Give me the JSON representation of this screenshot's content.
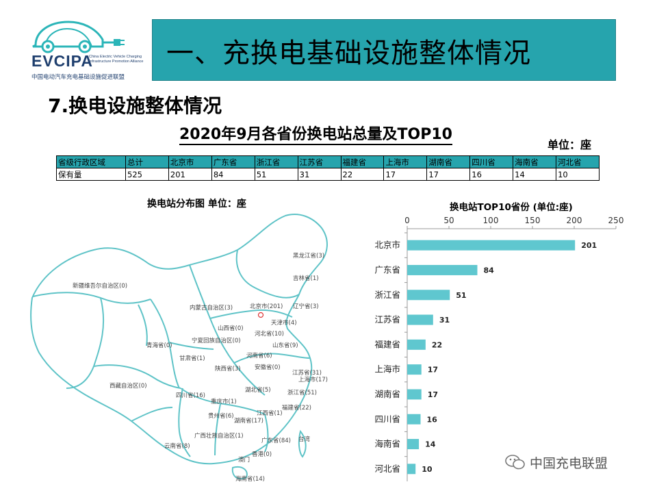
{
  "logo": {
    "name": "EVCIPA",
    "english": "China Electric Vehicle Charging Infrastructure Promotion Alliance",
    "chinese": "中国电动汽车充电基础设施促进联盟"
  },
  "header": {
    "title": "一、充换电基础设施整体情况"
  },
  "section": {
    "subtitle": "7.换电设施整体情况"
  },
  "table": {
    "title": "2020年9月各省份换电站总量及TOP10",
    "unit": "单位：座",
    "headers": [
      "省级行政区域",
      "总计",
      "北京市",
      "广东省",
      "浙江省",
      "江苏省",
      "福建省",
      "上海市",
      "湖南省",
      "四川省",
      "海南省",
      "河北省"
    ],
    "row": [
      "保有量",
      "525",
      "201",
      "84",
      "51",
      "31",
      "22",
      "17",
      "17",
      "16",
      "14",
      "10"
    ]
  },
  "map": {
    "title": "换电站分布图  单位：座",
    "labels": [
      "黑龙江省(3)",
      "吉林省(1)",
      "新疆维吾尔自治区(0)",
      "内蒙古自治区(3)",
      "北京市(201)",
      "辽宁省(3)",
      "天津市(4)",
      "山西省(0)",
      "河北省(10)",
      "宁夏回族自治区(0)",
      "青海省(0)",
      "甘肃省(1)",
      "山东省(9)",
      "河南省(6)",
      "陕西省(3)",
      "安徽省(0)",
      "江苏省(31)",
      "上海市(17)",
      "西藏自治区(0)",
      "湖北省(5)",
      "浙江省(51)",
      "四川省(16)",
      "重庆市(1)",
      "贵州省(6)",
      "湖南省(17)",
      "江西省(1)",
      "福建省(22)",
      "广西壮族自治区(1)",
      "云南省(8)",
      "广东省(84)",
      "台湾",
      "香港(0)",
      "澳门",
      "海南省(14)"
    ]
  },
  "chart_data": {
    "type": "bar",
    "orientation": "horizontal",
    "title": "换电站TOP10省份 (单位:座)",
    "categories": [
      "北京市",
      "广东省",
      "浙江省",
      "江苏省",
      "福建省",
      "上海市",
      "湖南省",
      "四川省",
      "海南省",
      "河北省"
    ],
    "values": [
      201,
      84,
      51,
      31,
      22,
      17,
      17,
      16,
      14,
      10
    ],
    "xlim": [
      0,
      250
    ],
    "ticks": [
      0,
      50,
      100,
      150,
      200,
      250
    ],
    "axis_position": "top",
    "grid": false,
    "bar_color": "#5fc7cf",
    "data_labels": true
  },
  "watermark": {
    "text": "中国充电联盟"
  },
  "colors": {
    "accent": "#26a4ad",
    "bar": "#5fc7cf",
    "map_outline": "#5ec3c7",
    "brand_text": "#1f3f6e"
  }
}
